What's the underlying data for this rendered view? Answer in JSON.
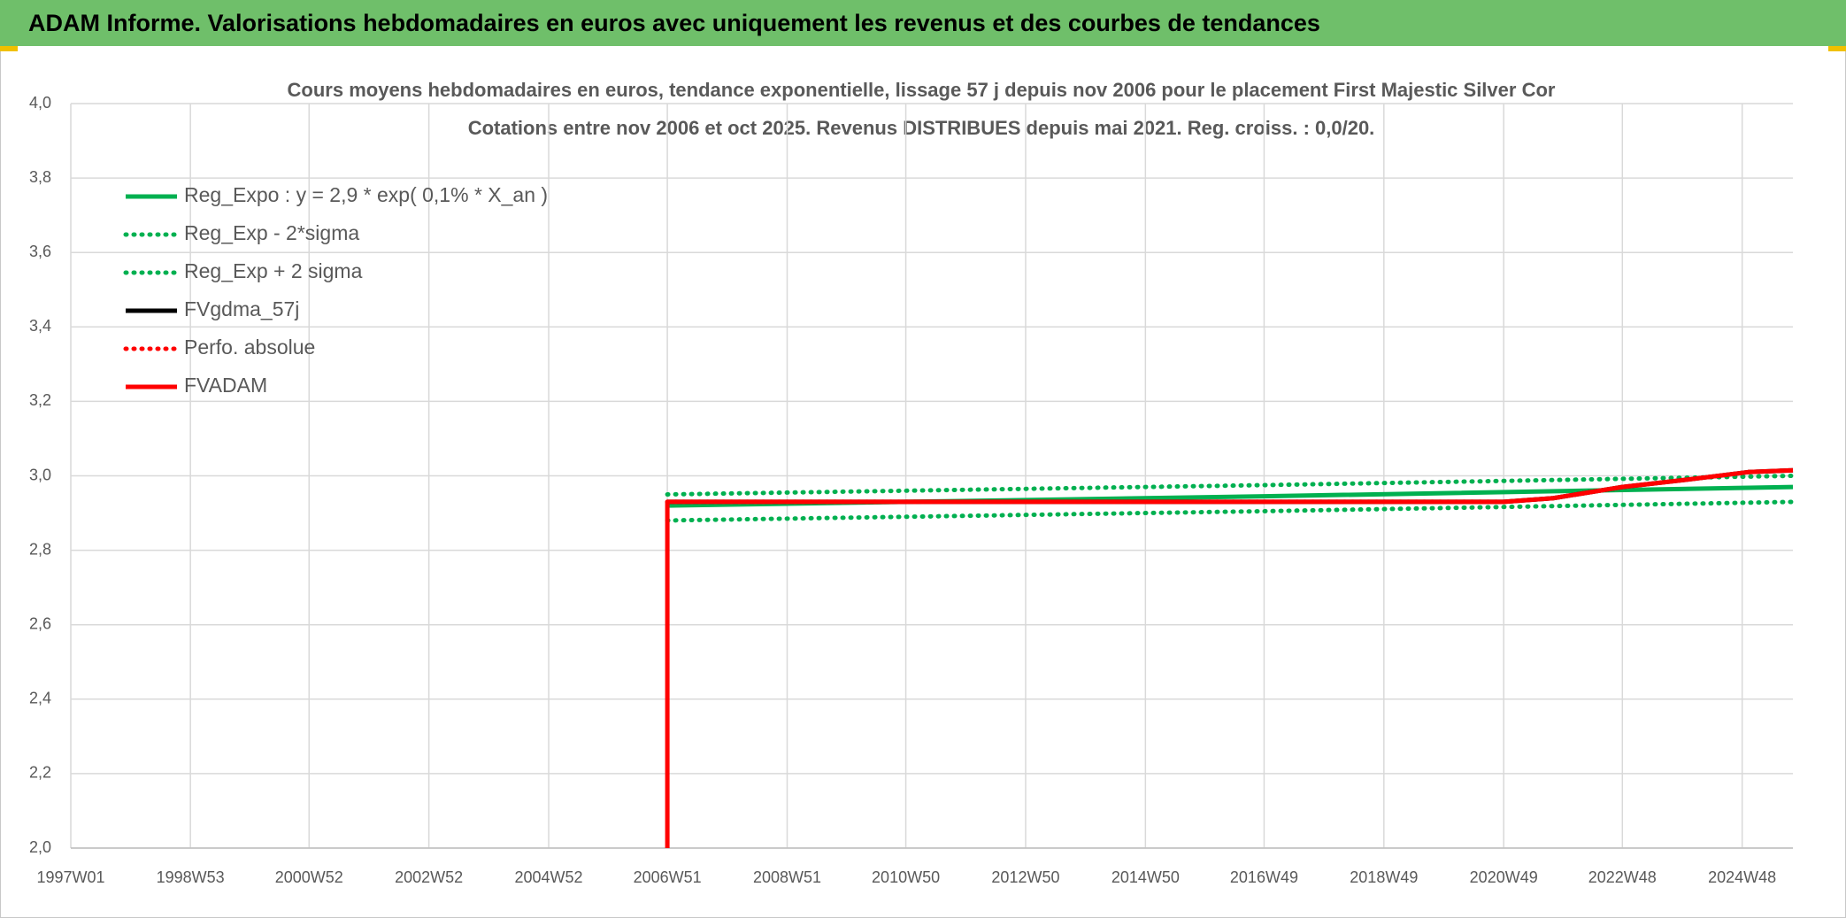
{
  "header": {
    "title": "ADAM Informe. Valorisations hebdomadaires en euros avec uniquement les revenus et des courbes de tendances"
  },
  "chart_data": {
    "type": "line",
    "title": "Cours moyens hebdomadaires en euros, tendance exponentielle, lissage 57 j depuis nov 2006 pour le placement First Majestic Silver Cor",
    "subtitle": "Cotations entre nov 2006 et oct 2025. Revenus DISTRIBUES depuis mai 2021. Reg. croiss. : 0,0/20.",
    "xlim": [
      "1997W01",
      "2025W40"
    ],
    "xticks": [
      "1997W01",
      "1998W53",
      "2000W52",
      "2002W52",
      "2004W52",
      "2006W51",
      "2008W51",
      "2010W50",
      "2012W50",
      "2014W50",
      "2016W49",
      "2018W49",
      "2020W49",
      "2022W48",
      "2024W48"
    ],
    "ylim": [
      2.0,
      4.0
    ],
    "yticks": [
      {
        "value": 2.0,
        "label": "2,0"
      },
      {
        "value": 2.2,
        "label": "2,2"
      },
      {
        "value": 2.4,
        "label": "2,4"
      },
      {
        "value": 2.6,
        "label": "2,6"
      },
      {
        "value": 2.8,
        "label": "2,8"
      },
      {
        "value": 3.0,
        "label": "3,0"
      },
      {
        "value": 3.2,
        "label": "3,2"
      },
      {
        "value": 3.4,
        "label": "3,4"
      },
      {
        "value": 3.6,
        "label": "3,6"
      },
      {
        "value": 3.8,
        "label": "3,8"
      },
      {
        "value": 4.0,
        "label": "4,0"
      }
    ],
    "grid": true,
    "legend": "upper-left",
    "series": [
      {
        "name": "Reg_Expo : y = 2,9 * exp( 0,1% *  X_an )",
        "color": "#00b050",
        "dash": "solid",
        "x": [
          "2006W51",
          "2016W49",
          "2025W40"
        ],
        "values": [
          2.92,
          2.945,
          2.97
        ]
      },
      {
        "name": "Reg_Exp - 2*sigma",
        "color": "#00b050",
        "dash": "dotted",
        "x": [
          "2006W51",
          "2016W49",
          "2025W40"
        ],
        "values": [
          2.88,
          2.905,
          2.93
        ]
      },
      {
        "name": "Reg_Exp + 2 sigma",
        "color": "#00b050",
        "dash": "dotted",
        "x": [
          "2006W51",
          "2016W49",
          "2025W40"
        ],
        "values": [
          2.95,
          2.975,
          3.0
        ]
      },
      {
        "name": "FVgdma_57j",
        "color": "#000000",
        "dash": "solid",
        "x": [
          "2006W51",
          "2020W49",
          "2021W40",
          "2022W48",
          "2024W01",
          "2025W01",
          "2025W40"
        ],
        "values": [
          2.93,
          2.93,
          2.94,
          2.97,
          2.99,
          3.01,
          3.015
        ]
      },
      {
        "name": "Perfo. absolue",
        "color": "#ff0000",
        "dash": "dotted",
        "x": [
          "2006W51",
          "2020W49",
          "2021W40",
          "2022W48",
          "2024W01",
          "2025W01",
          "2025W40"
        ],
        "values": [
          2.93,
          2.93,
          2.94,
          2.97,
          2.99,
          3.01,
          3.015
        ]
      },
      {
        "name": "FVADAM",
        "color": "#ff0000",
        "dash": "solid",
        "x": [
          "2006W51",
          "2006W51",
          "2020W49",
          "2021W40",
          "2022W48",
          "2024W01",
          "2025W01",
          "2025W40"
        ],
        "values": [
          2.0,
          2.93,
          2.93,
          2.94,
          2.97,
          2.99,
          3.01,
          3.015
        ]
      }
    ]
  }
}
